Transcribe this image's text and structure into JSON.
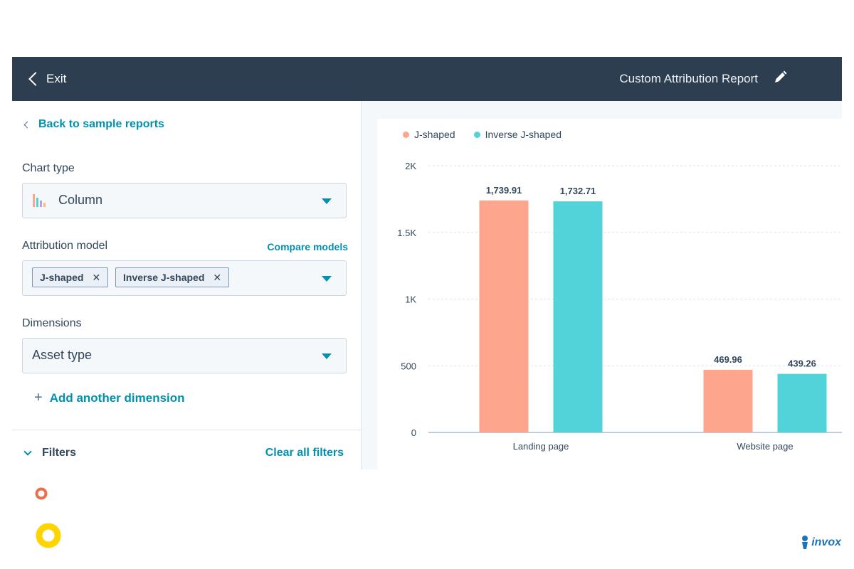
{
  "header": {
    "exit_label": "Exit",
    "report_title": "Custom Attribution Report"
  },
  "sidebar": {
    "back_link": "Back to sample reports",
    "chart_type_label": "Chart type",
    "chart_type_value": "Column",
    "attribution_label": "Attribution model",
    "compare_models": "Compare models",
    "tags": [
      "J-shaped",
      "Inverse J-shaped"
    ],
    "dimensions_label": "Dimensions",
    "dimensions_value": "Asset type",
    "add_dimension": "Add another dimension",
    "filters_label": "Filters",
    "clear_filters": "Clear all filters"
  },
  "brand": {
    "name": "invox"
  },
  "colors": {
    "j_shaped": "#fea58e",
    "inverse_j_shaped": "#51d3d9",
    "accent": "#0091ae",
    "header": "#2d3e50"
  },
  "chart_data": {
    "type": "bar",
    "categories": [
      "Landing page",
      "Website page"
    ],
    "series": [
      {
        "name": "J-shaped",
        "values": [
          1739.91,
          469.96
        ],
        "labels": [
          "1,739.91",
          "469.96"
        ]
      },
      {
        "name": "Inverse J-shaped",
        "values": [
          1732.71,
          439.26
        ],
        "labels": [
          "1,732.71",
          "439.26"
        ]
      }
    ],
    "ylim": [
      0,
      2000
    ],
    "yticks": [
      0,
      500,
      1000,
      1500,
      2000
    ],
    "ytick_labels": [
      "0",
      "500",
      "1K",
      "1.5K",
      "2K"
    ],
    "grid": true,
    "legend": "top-left"
  }
}
